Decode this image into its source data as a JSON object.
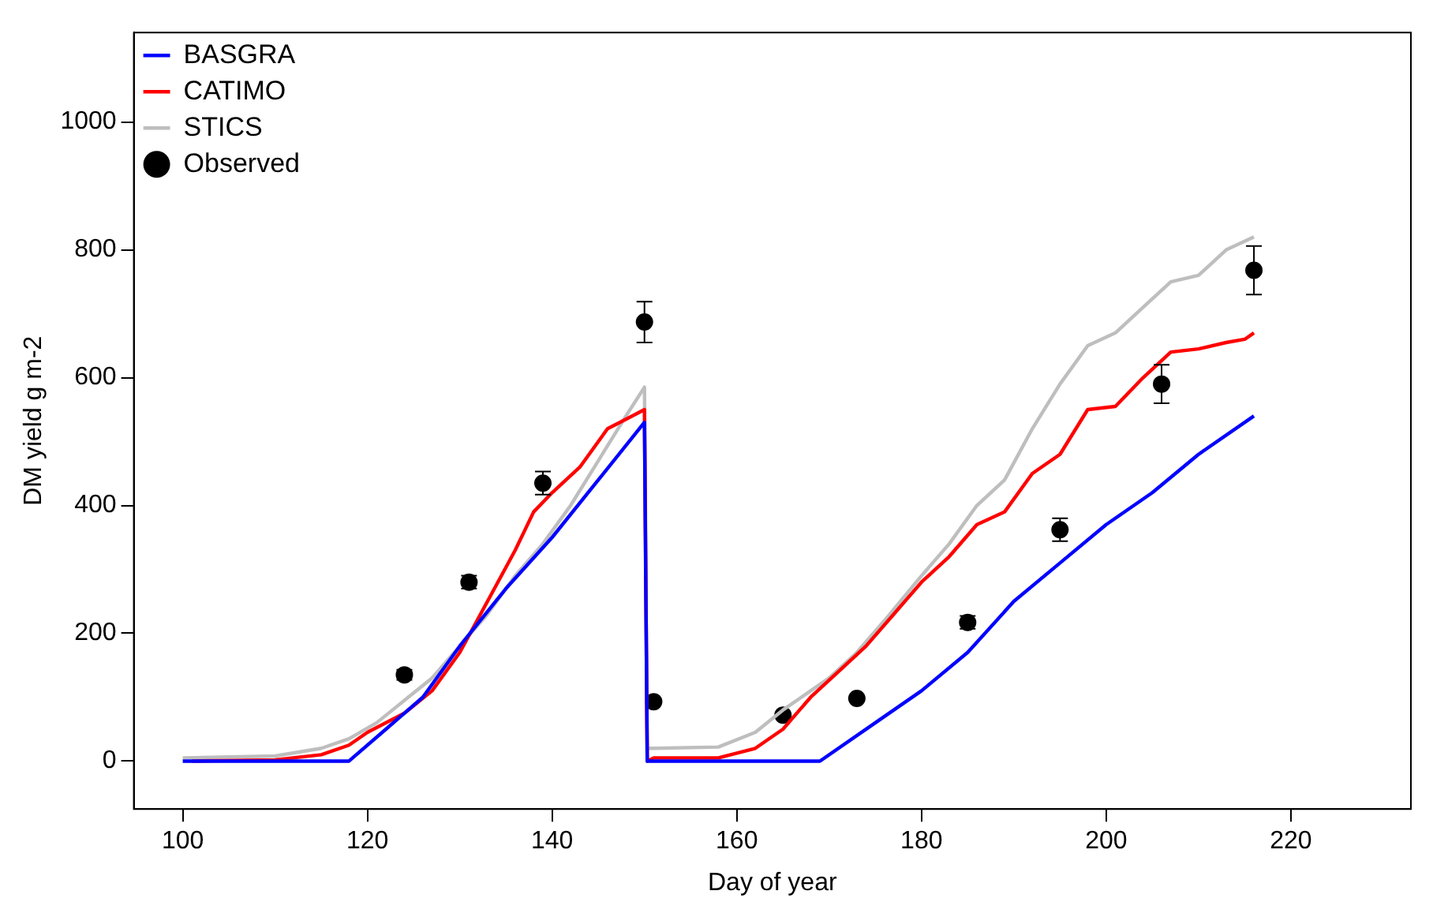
{
  "chart_data": {
    "type": "line",
    "xlabel": "Day of year",
    "ylabel": "DM yield g m-2",
    "xlim": [
      94.7,
      233
    ],
    "xticks": [
      100,
      120,
      140,
      160,
      180,
      200,
      220
    ],
    "ylim": [
      -75,
      1140
    ],
    "yticks": [
      0,
      200,
      400,
      600,
      800,
      1000
    ],
    "grid": false,
    "legend": "top left",
    "marker": "none",
    "line_style": "solid",
    "series": [
      {
        "name": "BASGRA",
        "type": "line",
        "color": "#0000ff",
        "x": [
          100,
          113,
          118,
          122,
          126,
          130,
          135,
          140,
          145,
          150,
          150.3,
          151,
          169,
          175,
          180,
          185,
          190,
          195,
          200,
          205,
          210,
          216
        ],
        "values": [
          0,
          0,
          0,
          50,
          100,
          180,
          270,
          350,
          440,
          530,
          0,
          0,
          0,
          60,
          110,
          170,
          250,
          310,
          370,
          420,
          480,
          540
        ]
      },
      {
        "name": "CATIMO",
        "type": "line",
        "color": "#ff0000",
        "x": [
          101,
          110,
          115,
          118,
          120,
          124,
          127,
          130,
          133,
          136,
          138,
          140,
          143,
          146,
          148,
          150,
          150.3,
          151,
          158,
          162,
          165,
          168,
          171,
          174,
          177,
          180,
          183,
          186,
          189,
          192,
          195,
          198,
          201,
          204,
          207,
          210,
          213,
          215,
          216
        ],
        "values": [
          0,
          2,
          10,
          25,
          45,
          75,
          110,
          170,
          250,
          330,
          390,
          420,
          460,
          520,
          535,
          550,
          0,
          5,
          5,
          20,
          50,
          100,
          140,
          180,
          230,
          280,
          320,
          370,
          390,
          450,
          480,
          550,
          555,
          600,
          640,
          645,
          655,
          660,
          670
        ]
      },
      {
        "name": "STICS",
        "type": "line",
        "color": "#bebebe",
        "x": [
          100,
          110,
          115,
          118,
          121,
          124,
          127,
          130,
          133,
          136,
          139,
          142,
          145,
          148,
          150,
          150.3,
          151,
          158,
          162,
          165,
          170,
          173,
          176,
          180,
          183,
          186,
          189,
          192,
          195,
          198,
          201,
          204,
          207,
          210,
          213,
          216
        ],
        "values": [
          5,
          8,
          20,
          35,
          60,
          95,
          130,
          180,
          230,
          290,
          340,
          400,
          470,
          540,
          585,
          20,
          20,
          22,
          45,
          80,
          130,
          170,
          220,
          290,
          340,
          400,
          440,
          520,
          590,
          650,
          670,
          710,
          750,
          760,
          800,
          820
        ]
      },
      {
        "name": "Observed",
        "type": "scatter",
        "marker": "circle",
        "color": "#000000",
        "x": [
          124,
          131,
          139,
          150,
          151,
          165,
          173,
          185,
          195,
          206,
          216
        ],
        "values": [
          135,
          280,
          435,
          687,
          93,
          72,
          98,
          217,
          362,
          590,
          768
        ],
        "errors": [
          8,
          10,
          18,
          32,
          null,
          null,
          null,
          10,
          18,
          30,
          38
        ]
      }
    ]
  }
}
